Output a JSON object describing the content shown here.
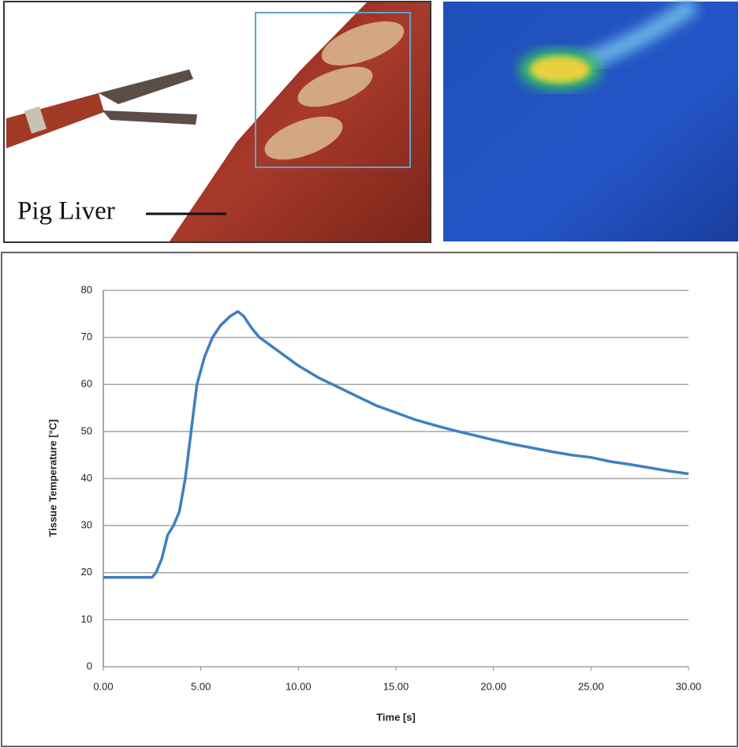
{
  "photo": {
    "label": "Pig Liver"
  },
  "chart_data": {
    "type": "line",
    "x_label": "Time [s]",
    "y_label": "Tissue Temperature [°C]",
    "x": [
      0,
      2.5,
      2.7,
      3.0,
      3.3,
      3.6,
      3.9,
      4.2,
      4.5,
      4.8,
      5.2,
      5.6,
      6.0,
      6.5,
      6.9,
      7.2,
      7.6,
      8,
      9,
      10,
      11,
      12,
      13,
      14,
      15,
      16,
      17,
      18,
      19,
      20,
      21,
      22,
      23,
      24,
      25,
      26,
      27,
      28,
      29,
      30
    ],
    "values": [
      19,
      19,
      20,
      23,
      28,
      30,
      33,
      40,
      50,
      60,
      66,
      70,
      72.5,
      74.5,
      75.5,
      74.5,
      72,
      70,
      67,
      64,
      61.5,
      59.5,
      57.5,
      55.5,
      54,
      52.5,
      51.3,
      50.2,
      49.2,
      48.2,
      47.3,
      46.5,
      45.7,
      45,
      44.5,
      43.6,
      43,
      42.3,
      41.6,
      41
    ],
    "color": "#3f7fc1",
    "xlim": [
      0,
      30
    ],
    "xticks": [
      {
        "value": 0,
        "label": "0.00"
      },
      {
        "value": 5,
        "label": "5.00"
      },
      {
        "value": 10,
        "label": "10.00"
      },
      {
        "value": 15,
        "label": "15.00"
      },
      {
        "value": 20,
        "label": "20.00"
      },
      {
        "value": 25,
        "label": "25.00"
      },
      {
        "value": 30,
        "label": "30.00"
      }
    ],
    "ylim": [
      0,
      80
    ],
    "yticks": [
      0,
      10,
      20,
      30,
      40,
      50,
      60,
      70,
      80
    ],
    "grid": true
  }
}
